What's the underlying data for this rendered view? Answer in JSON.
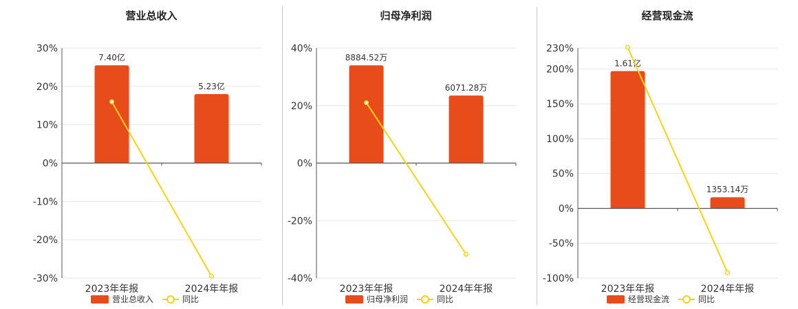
{
  "charts": [
    {
      "title": "营业总收入",
      "legend": {
        "bar": "营业总收入",
        "line": "同比"
      },
      "chart_data": {
        "type": "bar",
        "categories": [
          "2023年年报",
          "2024年年报"
        ],
        "series": [
          {
            "name": "营业总收入",
            "type": "bar",
            "values": [
              25.5,
              18.0
            ],
            "labels": [
              "7.40亿",
              "5.23亿"
            ]
          },
          {
            "name": "同比",
            "type": "line",
            "values": [
              16,
              -29.5
            ]
          }
        ],
        "ylim": [
          -30,
          30
        ],
        "yticks": [
          30,
          20,
          10,
          0,
          -10,
          -20,
          -30
        ],
        "yticklabels": [
          "30%",
          "20%",
          "10%",
          "0%",
          "-10%",
          "-20%",
          "-30%"
        ],
        "grid": true,
        "legend_position": "bottom"
      }
    },
    {
      "title": "归母净利润",
      "legend": {
        "bar": "归母净利润",
        "line": "同比"
      },
      "chart_data": {
        "type": "bar",
        "categories": [
          "2023年年报",
          "2024年年报"
        ],
        "series": [
          {
            "name": "归母净利润",
            "type": "bar",
            "values": [
              34.0,
              23.5
            ],
            "labels": [
              "8884.52万",
              "6071.28万"
            ]
          },
          {
            "name": "同比",
            "type": "line",
            "values": [
              21,
              -31.7
            ]
          }
        ],
        "ylim": [
          -40,
          40
        ],
        "yticks": [
          40,
          20,
          0,
          -20,
          -40
        ],
        "yticklabels": [
          "40%",
          "20%",
          "0%",
          "-20%",
          "-40%"
        ],
        "grid": true,
        "legend_position": "bottom"
      }
    },
    {
      "title": "经营现金流",
      "legend": {
        "bar": "经营现金流",
        "line": "同比"
      },
      "chart_data": {
        "type": "bar",
        "categories": [
          "2023年年报",
          "2024年年报"
        ],
        "series": [
          {
            "name": "经营现金流",
            "type": "bar",
            "values": [
              197,
              16
            ],
            "labels": [
              "1.61亿",
              "1353.14万"
            ]
          },
          {
            "name": "同比",
            "type": "line",
            "values": [
              231,
              -92
            ]
          }
        ],
        "ylim": [
          -100,
          230
        ],
        "yticks": [
          230,
          200,
          150,
          100,
          50,
          0,
          -50,
          -100
        ],
        "yticklabels": [
          "230%",
          "200%",
          "150%",
          "100%",
          "50%",
          "0%",
          "-50%",
          "-100%"
        ],
        "grid": true,
        "legend_position": "bottom"
      }
    }
  ],
  "colors": {
    "bar": "#e84c1b",
    "line": "#f2d21a",
    "grid": "#e6e6e6",
    "axis": "#555555"
  }
}
